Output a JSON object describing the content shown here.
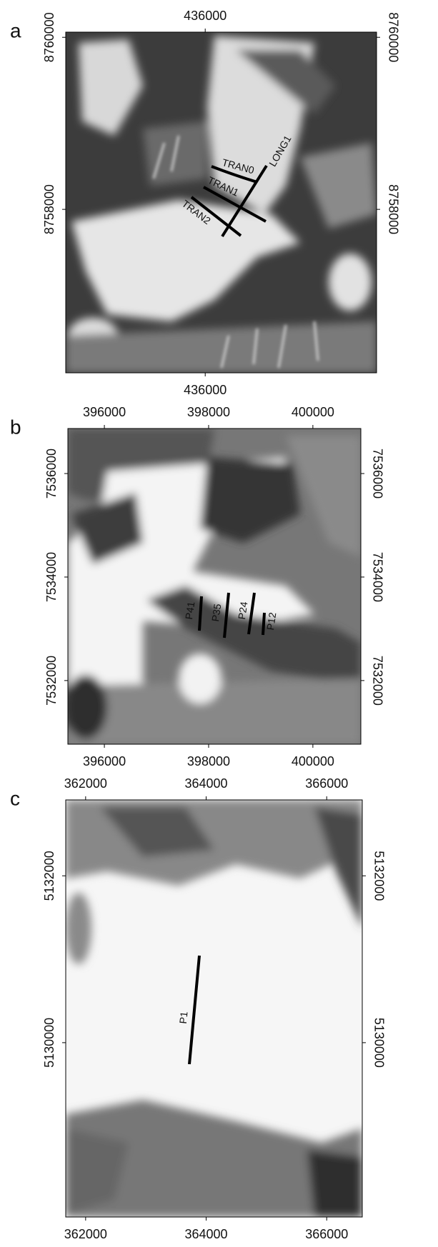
{
  "panels": [
    {
      "label": "a",
      "xlim": [
        434380,
        437990
      ],
      "ylim": [
        8756100,
        8760060
      ],
      "xticks": [
        436000
      ],
      "yticks": [
        8758000,
        8760000
      ],
      "transects": [
        "TRAN0",
        "LONG1",
        "TRAN1",
        "TRAN2"
      ]
    },
    {
      "label": "b",
      "xlim": [
        395300,
        400920
      ],
      "ylim": [
        7530770,
        7536870
      ],
      "xticks": [
        396000,
        398000,
        400000
      ],
      "yticks": [
        7532000,
        7534000,
        7536000
      ],
      "transects": [
        "P41",
        "P35",
        "P24",
        "P12"
      ]
    },
    {
      "label": "c",
      "xlim": [
        361670,
        366590
      ],
      "ylim": [
        5127910,
        5132910
      ],
      "xticks": [
        362000,
        364000,
        366000
      ],
      "yticks": [
        5130000,
        5132000
      ],
      "transects": [
        "P1"
      ]
    }
  ]
}
